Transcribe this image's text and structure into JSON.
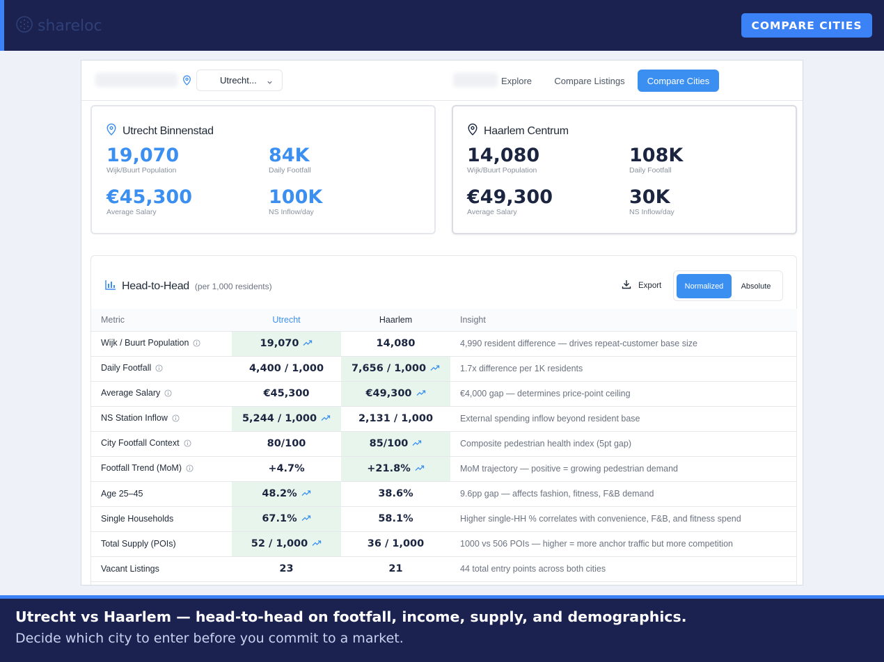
{
  "brand": {
    "name": "shareloc",
    "logo_icon": "globe-dots-icon"
  },
  "header": {
    "cta_label": "COMPARE CITIES"
  },
  "appbar": {
    "city_select": "Utrecht...",
    "nav": [
      "Explore",
      "Compare Listings",
      "Compare Cities"
    ],
    "active_nav": "Compare Cities"
  },
  "cities": [
    {
      "name": "Utrecht Binnenstad",
      "stats": [
        {
          "value": "19,070",
          "label": "Wijk/Buurt Population"
        },
        {
          "value": "84K",
          "label": "Daily Footfall"
        },
        {
          "value": "€45,300",
          "label": "Average Salary"
        },
        {
          "value": "100K",
          "label": "NS Inflow/day"
        }
      ]
    },
    {
      "name": "Haarlem Centrum",
      "stats": [
        {
          "value": "14,080",
          "label": "Wijk/Buurt Population"
        },
        {
          "value": "108K",
          "label": "Daily Footfall"
        },
        {
          "value": "€49,300",
          "label": "Average Salary"
        },
        {
          "value": "30K",
          "label": "NS Inflow/day"
        }
      ]
    }
  ],
  "h2h": {
    "title": "Head-to-Head",
    "subtitle": "(per 1,000 residents)",
    "export_label": "Export",
    "toggle": [
      "Normalized",
      "Absolute"
    ],
    "columns": [
      "Metric",
      "Utrecht",
      "Haarlem",
      "Insight"
    ],
    "rows": [
      {
        "metric": "Wijk / Buurt Population",
        "info": true,
        "a": "19,070",
        "b": "14,080",
        "winner": "a",
        "insight": "4,990 resident difference — drives repeat-customer base size"
      },
      {
        "metric": "Daily Footfall",
        "info": true,
        "a": "4,400 / 1,000",
        "b": "7,656 / 1,000",
        "winner": "b",
        "insight": "1.7x difference per 1K residents"
      },
      {
        "metric": "Average Salary",
        "info": true,
        "a": "€45,300",
        "b": "€49,300",
        "winner": "b",
        "insight": "€4,000 gap — determines price-point ceiling"
      },
      {
        "metric": "NS Station Inflow",
        "info": true,
        "a": "5,244 / 1,000",
        "b": "2,131 / 1,000",
        "winner": "a",
        "insight": "External spending inflow beyond resident base"
      },
      {
        "metric": "City Footfall Context",
        "info": true,
        "a": "80/100",
        "b": "85/100",
        "winner": "b",
        "insight": "Composite pedestrian health index (5pt gap)"
      },
      {
        "metric": "Footfall Trend (MoM)",
        "info": true,
        "a": "+4.7%",
        "b": "+21.8%",
        "winner": "b",
        "insight": "MoM trajectory — positive = growing pedestrian demand"
      },
      {
        "metric": "Age 25–45",
        "info": false,
        "a": "48.2%",
        "b": "38.6%",
        "winner": "a",
        "insight": "9.6pp gap — affects fashion, fitness, F&B demand"
      },
      {
        "metric": "Single Households",
        "info": false,
        "a": "67.1%",
        "b": "58.1%",
        "winner": "a",
        "insight": "Higher single-HH % correlates with convenience, F&B, and fitness spend"
      },
      {
        "metric": "Total Supply (POIs)",
        "info": false,
        "a": "52 / 1,000",
        "b": "36 / 1,000",
        "winner": "a",
        "insight": "1000 vs 506 POIs — higher = more anchor traffic but more competition"
      },
      {
        "metric": "Vacant Listings",
        "info": false,
        "a": "23",
        "b": "21",
        "winner": "",
        "insight": "44 total entry points across both cities"
      }
    ]
  },
  "caption": {
    "title": "Utrecht vs Haarlem — head-to-head on footfall, income, supply, and demographics.",
    "subtitle": "Decide which city to enter before you commit to a market."
  },
  "colors": {
    "navy": "#1b2250",
    "accent": "#3b82f6",
    "win_bg": "#e8f5ec"
  }
}
